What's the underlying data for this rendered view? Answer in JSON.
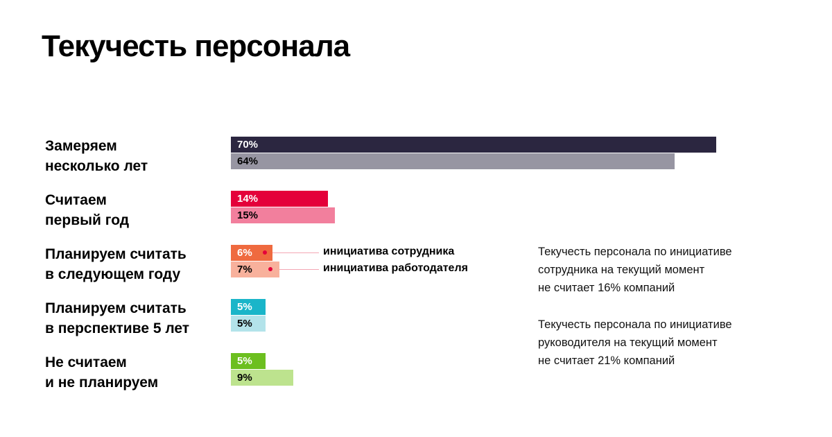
{
  "title": "Текучесть персонала",
  "colors": {
    "text_dark": "#000000",
    "text_light": "#ffffff"
  },
  "chart_data": {
    "type": "bar",
    "orientation": "horizontal",
    "title": "Текучесть персонала",
    "unit": "%",
    "xlim": [
      0,
      70
    ],
    "categories": [
      "Замеряем несколько лет",
      "Считаем первый год",
      "Планируем считать в следующем году",
      "Планируем считать в перспективе 5 лет",
      "Не считаем и не планируем"
    ],
    "category_lines": [
      [
        "Замеряем",
        "несколько лет"
      ],
      [
        "Считаем",
        "первый год"
      ],
      [
        "Планируем считать",
        "в следующем году"
      ],
      [
        "Планируем считать",
        "в перспективе 5 лет"
      ],
      [
        "Не считаем",
        "и не планируем"
      ]
    ],
    "series": [
      {
        "name": "инициатива сотрудника",
        "values": [
          70,
          14,
          6,
          5,
          5
        ],
        "labels": [
          "70%",
          "14%",
          "6%",
          "5%",
          "5%"
        ],
        "colors": [
          "#2b2640",
          "#e4003a",
          "#ef6a3f",
          "#1ab5c9",
          "#6cbf1f"
        ],
        "label_colors": [
          "#ffffff",
          "#ffffff",
          "#ffffff",
          "#ffffff",
          "#ffffff"
        ]
      },
      {
        "name": "инициатива работодателя",
        "values": [
          64,
          15,
          7,
          5,
          9
        ],
        "labels": [
          "64%",
          "15%",
          "7%",
          "5%",
          "9%"
        ],
        "colors": [
          "#9795a2",
          "#f27f9d",
          "#f8b19c",
          "#b3e3ea",
          "#bde38e"
        ],
        "label_colors": [
          "#000000",
          "#000000",
          "#000000",
          "#000000",
          "#000000"
        ]
      }
    ],
    "legend": {
      "position": "inline-right-of-third-group",
      "entries": [
        "инициатива сотрудника",
        "инициатива работодателя"
      ]
    },
    "annotations": [
      [
        "Текучесть персонала по инициативе",
        "сотрудника на текущий момент",
        "не считает 16% компаний"
      ],
      [
        "Текучесть персонала по инициативе",
        "руководителя на текущий момент",
        "не считает 21% компаний"
      ]
    ]
  }
}
